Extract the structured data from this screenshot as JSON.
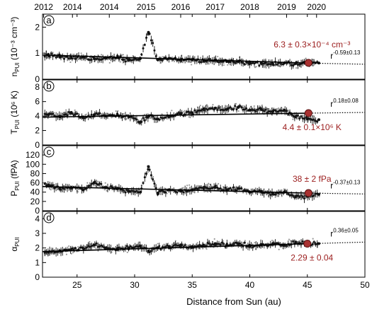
{
  "chart_data": [
    {
      "type": "scatter",
      "panel_letter": "a",
      "ylabel_main": "n",
      "ylabel_sub": "PUI",
      "ylabel_units": "(10⁻³ cm⁻³)",
      "xlabel": "Distance from Sun (au)",
      "xlim": [
        22,
        50
      ],
      "ylim": [
        0,
        2.5
      ],
      "yticks": [
        0,
        1,
        2
      ],
      "top_axis_years": [
        "2012",
        "2014",
        "2014",
        "2015",
        "2016",
        "2017",
        "2018",
        "2019",
        "2020"
      ],
      "top_axis_year_positions_au": [
        22.1,
        24.6,
        27.8,
        31.0,
        34.0,
        37.0,
        40.0,
        43.2,
        45.8
      ],
      "annotation": "6.3 ± 0.3×10⁻⁴ cm⁻³",
      "exponent_label": "-0.59±0.13",
      "marker_point": {
        "x": 45.1,
        "y": 0.63
      },
      "fit_line": {
        "x": [
          22,
          45
        ],
        "y": [
          0.93,
          0.62
        ]
      },
      "extrapolation": {
        "x": [
          45,
          50
        ],
        "y": [
          0.62,
          0.575
        ]
      },
      "trend_points": [
        {
          "x": 22.5,
          "y": 0.95
        },
        {
          "x": 23.5,
          "y": 0.85
        },
        {
          "x": 24.5,
          "y": 0.82
        },
        {
          "x": 25.5,
          "y": 0.85
        },
        {
          "x": 26.5,
          "y": 0.78
        },
        {
          "x": 27.5,
          "y": 0.8
        },
        {
          "x": 28.5,
          "y": 0.83
        },
        {
          "x": 29.5,
          "y": 0.75
        },
        {
          "x": 30.5,
          "y": 0.8
        },
        {
          "x": 31.2,
          "y": 1.8
        },
        {
          "x": 32.0,
          "y": 0.75
        },
        {
          "x": 33.0,
          "y": 0.8
        },
        {
          "x": 34.0,
          "y": 0.72
        },
        {
          "x": 35.0,
          "y": 0.75
        },
        {
          "x": 36.0,
          "y": 0.7
        },
        {
          "x": 37.0,
          "y": 0.72
        },
        {
          "x": 38.0,
          "y": 0.68
        },
        {
          "x": 39.0,
          "y": 0.68
        },
        {
          "x": 40.0,
          "y": 0.62
        },
        {
          "x": 41.0,
          "y": 0.6
        },
        {
          "x": 42.0,
          "y": 0.58
        },
        {
          "x": 43.0,
          "y": 0.62
        },
        {
          "x": 44.0,
          "y": 0.6
        },
        {
          "x": 45.0,
          "y": 0.62
        },
        {
          "x": 46.0,
          "y": 0.62
        }
      ]
    },
    {
      "type": "scatter",
      "panel_letter": "b",
      "ylabel_main": "T",
      "ylabel_sub": "PUI",
      "ylabel_units": "(10⁶ K)",
      "xlim": [
        22,
        50
      ],
      "ylim": [
        0,
        9
      ],
      "yticks": [
        0,
        2,
        4,
        6,
        8
      ],
      "annotation": "4.4 ± 0.1×10⁶ K",
      "exponent_label": "0.18±0.08",
      "marker_point": {
        "x": 45.1,
        "y": 4.4
      },
      "fit_line": {
        "x": [
          22,
          45
        ],
        "y": [
          3.85,
          4.4
        ]
      },
      "extrapolation": {
        "x": [
          45,
          50
        ],
        "y": [
          4.4,
          4.5
        ]
      },
      "trend_points": [
        {
          "x": 22.5,
          "y": 4.2
        },
        {
          "x": 23.5,
          "y": 3.9
        },
        {
          "x": 24.5,
          "y": 4.5
        },
        {
          "x": 25.5,
          "y": 3.8
        },
        {
          "x": 26.5,
          "y": 4.2
        },
        {
          "x": 27.5,
          "y": 4.0
        },
        {
          "x": 28.5,
          "y": 4.1
        },
        {
          "x": 29.5,
          "y": 3.9
        },
        {
          "x": 30.5,
          "y": 3.2
        },
        {
          "x": 31.2,
          "y": 4.0
        },
        {
          "x": 32.0,
          "y": 3.6
        },
        {
          "x": 33.0,
          "y": 4.0
        },
        {
          "x": 34.0,
          "y": 4.3
        },
        {
          "x": 35.0,
          "y": 4.4
        },
        {
          "x": 36.0,
          "y": 5.0
        },
        {
          "x": 37.0,
          "y": 5.1
        },
        {
          "x": 38.0,
          "y": 4.9
        },
        {
          "x": 39.0,
          "y": 5.2
        },
        {
          "x": 40.0,
          "y": 4.8
        },
        {
          "x": 41.0,
          "y": 4.9
        },
        {
          "x": 42.0,
          "y": 4.6
        },
        {
          "x": 43.0,
          "y": 4.8
        },
        {
          "x": 44.0,
          "y": 3.9
        },
        {
          "x": 45.0,
          "y": 3.6
        },
        {
          "x": 46.0,
          "y": 3.5
        }
      ]
    },
    {
      "type": "scatter",
      "panel_letter": "c",
      "ylabel_main": "P",
      "ylabel_sub": "PUI",
      "ylabel_units": "(fPA)",
      "xlim": [
        22,
        50
      ],
      "ylim": [
        0,
        140
      ],
      "yticks": [
        0,
        20,
        40,
        60,
        80,
        100,
        120
      ],
      "annotation": "38 ± 2 fPa",
      "exponent_label": "-0.37±0.13",
      "marker_point": {
        "x": 45.1,
        "y": 38
      },
      "fit_line": {
        "x": [
          22,
          45
        ],
        "y": [
          52,
          38
        ]
      },
      "extrapolation": {
        "x": [
          45,
          50
        ],
        "y": [
          38,
          36
        ]
      },
      "trend_points": [
        {
          "x": 22.5,
          "y": 55
        },
        {
          "x": 23.5,
          "y": 48
        },
        {
          "x": 24.5,
          "y": 50
        },
        {
          "x": 25.5,
          "y": 45
        },
        {
          "x": 26.5,
          "y": 60
        },
        {
          "x": 27.5,
          "y": 50
        },
        {
          "x": 28.5,
          "y": 48
        },
        {
          "x": 29.5,
          "y": 42
        },
        {
          "x": 30.5,
          "y": 40
        },
        {
          "x": 31.2,
          "y": 95
        },
        {
          "x": 32.0,
          "y": 38
        },
        {
          "x": 33.0,
          "y": 45
        },
        {
          "x": 34.0,
          "y": 42
        },
        {
          "x": 35.0,
          "y": 45
        },
        {
          "x": 36.0,
          "y": 48
        },
        {
          "x": 37.0,
          "y": 50
        },
        {
          "x": 38.0,
          "y": 45
        },
        {
          "x": 39.0,
          "y": 48
        },
        {
          "x": 40.0,
          "y": 40
        },
        {
          "x": 41.0,
          "y": 42
        },
        {
          "x": 42.0,
          "y": 36
        },
        {
          "x": 43.0,
          "y": 40
        },
        {
          "x": 44.0,
          "y": 30
        },
        {
          "x": 45.0,
          "y": 32
        },
        {
          "x": 46.0,
          "y": 35
        }
      ]
    },
    {
      "type": "scatter",
      "panel_letter": "d",
      "ylabel_main": "α",
      "ylabel_sub": "PUI",
      "ylabel_units": "",
      "xlim": [
        22,
        50
      ],
      "ylim": [
        0,
        4.5
      ],
      "yticks": [
        0,
        1,
        2,
        3,
        4
      ],
      "xticks": [
        25,
        30,
        35,
        40,
        45,
        50
      ],
      "annotation": "2.29 ± 0.04",
      "exponent_label": "0.36±0.05",
      "marker_point": {
        "x": 45.0,
        "y": 2.29
      },
      "fit_line": {
        "x": [
          22,
          45
        ],
        "y": [
          1.75,
          2.29
        ]
      },
      "extrapolation": {
        "x": [
          45,
          50
        ],
        "y": [
          2.29,
          2.4
        ]
      },
      "trend_points": [
        {
          "x": 22.5,
          "y": 1.7
        },
        {
          "x": 23.5,
          "y": 1.8
        },
        {
          "x": 24.5,
          "y": 1.9
        },
        {
          "x": 25.5,
          "y": 2.0
        },
        {
          "x": 26.5,
          "y": 2.2
        },
        {
          "x": 27.5,
          "y": 2.0
        },
        {
          "x": 28.5,
          "y": 1.9
        },
        {
          "x": 29.5,
          "y": 2.0
        },
        {
          "x": 30.5,
          "y": 2.1
        },
        {
          "x": 31.2,
          "y": 1.8
        },
        {
          "x": 32.0,
          "y": 2.0
        },
        {
          "x": 33.0,
          "y": 2.1
        },
        {
          "x": 34.0,
          "y": 2.2
        },
        {
          "x": 35.0,
          "y": 2.1
        },
        {
          "x": 36.0,
          "y": 2.2
        },
        {
          "x": 37.0,
          "y": 2.3
        },
        {
          "x": 38.0,
          "y": 2.2
        },
        {
          "x": 39.0,
          "y": 2.3
        },
        {
          "x": 40.0,
          "y": 2.1
        },
        {
          "x": 41.0,
          "y": 2.2
        },
        {
          "x": 42.0,
          "y": 2.3
        },
        {
          "x": 43.0,
          "y": 2.2
        },
        {
          "x": 44.0,
          "y": 2.4
        },
        {
          "x": 45.0,
          "y": 2.3
        },
        {
          "x": 46.0,
          "y": 2.3
        }
      ]
    }
  ],
  "colors": {
    "marker": "#a83232",
    "marker_edge": "#5a1010",
    "annotation": "#9b1c1c",
    "scatter_grey": "#9a9a9a",
    "points": "#111111"
  }
}
